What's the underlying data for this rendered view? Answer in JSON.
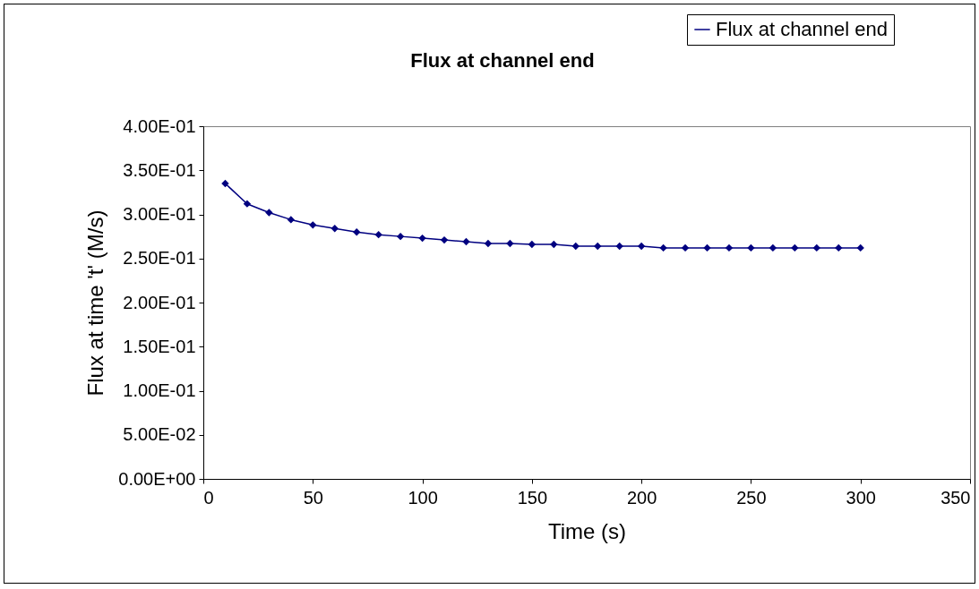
{
  "chart_data": {
    "type": "line",
    "title": "Flux at channel end",
    "xlabel": "Time (s)",
    "ylabel": "Flux at time 't' (M/s)",
    "x": [
      10,
      20,
      30,
      40,
      50,
      60,
      70,
      80,
      90,
      100,
      110,
      120,
      130,
      140,
      150,
      160,
      170,
      180,
      190,
      200,
      210,
      220,
      230,
      240,
      250,
      260,
      270,
      280,
      290,
      300
    ],
    "series": [
      {
        "name": "Flux at channel end",
        "color": "#000080",
        "values": [
          0.335,
          0.312,
          0.302,
          0.294,
          0.288,
          0.284,
          0.28,
          0.277,
          0.275,
          0.273,
          0.271,
          0.269,
          0.267,
          0.267,
          0.266,
          0.266,
          0.264,
          0.264,
          0.264,
          0.264,
          0.262,
          0.262,
          0.262,
          0.262,
          0.262,
          0.262,
          0.262,
          0.262,
          0.262,
          0.262
        ]
      }
    ],
    "xlim": [
      0,
      350
    ],
    "xticks": [
      0,
      50,
      100,
      150,
      200,
      250,
      300,
      350
    ],
    "ylim": [
      0,
      0.4
    ],
    "yticks": [
      {
        "value": 0,
        "label": "0.00E+00"
      },
      {
        "value": 0.05,
        "label": "5.00E-02"
      },
      {
        "value": 0.1,
        "label": "1.00E-01"
      },
      {
        "value": 0.15,
        "label": "1.50E-01"
      },
      {
        "value": 0.2,
        "label": "2.00E-01"
      },
      {
        "value": 0.25,
        "label": "2.50E-01"
      },
      {
        "value": 0.3,
        "label": "3.00E-01"
      },
      {
        "value": 0.35,
        "label": "3.50E-01"
      },
      {
        "value": 0.4,
        "label": "4.00E-01"
      }
    ],
    "grid": false,
    "legend": "top right",
    "marker": "diamond",
    "line_style": "solid"
  }
}
